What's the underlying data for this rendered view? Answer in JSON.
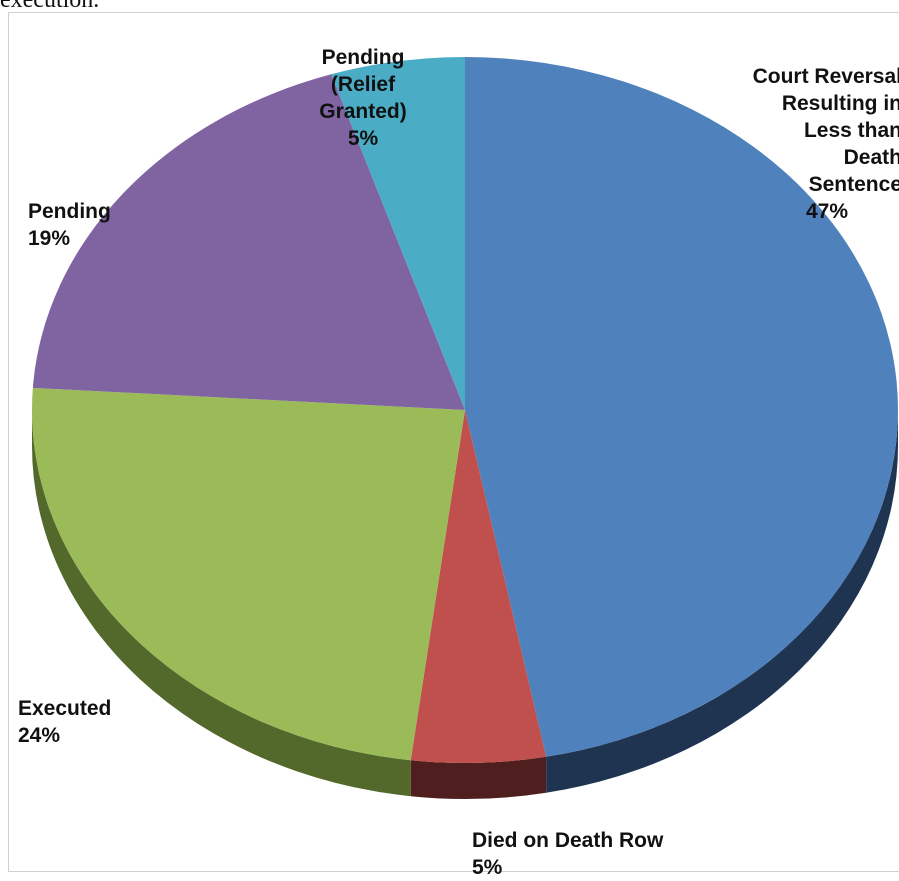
{
  "page": {
    "top_text": "execution."
  },
  "chart_data": {
    "type": "pie",
    "style": "3d-tilted",
    "slices": [
      {
        "label": "Court Reversal Resulting in Less than Death Sentence",
        "value": 47,
        "percent_label": "47%",
        "color": "#4f81bd",
        "side_color": "#1f3451"
      },
      {
        "label": "Died on Death Row",
        "value": 5,
        "percent_label": "5%",
        "color": "#c0504d",
        "side_color": "#4e1f1e"
      },
      {
        "label": "Executed",
        "value": 24,
        "percent_label": "24%",
        "color": "#9bbb59",
        "side_color": "#53692c"
      },
      {
        "label": "Pending",
        "value": 19,
        "percent_label": "19%",
        "color": "#8064a2",
        "side_color": "#3d2d52"
      },
      {
        "label": "Pending (Relief Granted)",
        "value": 5,
        "percent_label": "5%",
        "color": "#4bacc6",
        "side_color": "#1d5c6c"
      }
    ],
    "label_text": {
      "court": "Court Reversal\nResulting in\nLess than\nDeath\nSentence",
      "died": "Died on Death Row",
      "executed": "Executed",
      "pending": "Pending",
      "relief": "Pending\n(Relief\nGranted)"
    },
    "legend": "none"
  }
}
